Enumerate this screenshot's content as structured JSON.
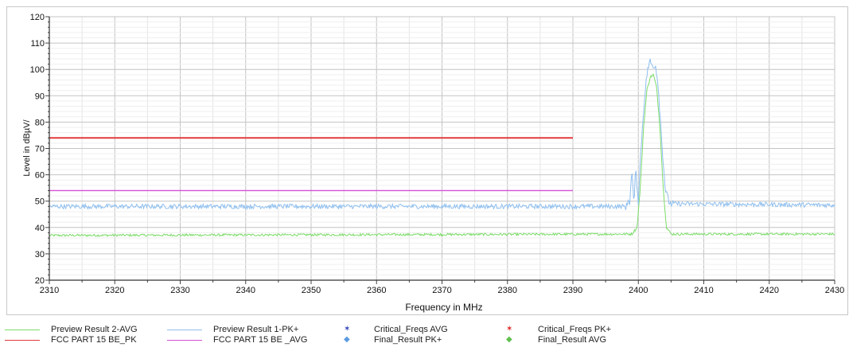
{
  "chart_data": {
    "type": "line",
    "xlabel": "Frequency in MHz",
    "ylabel": "Level in dBµV/",
    "xlim": [
      2310,
      2430
    ],
    "ylim": [
      20,
      120
    ],
    "x_ticks": [
      "2310",
      "2320",
      "2330",
      "2340",
      "2350",
      "2360",
      "2370",
      "2380",
      "2390",
      "2400",
      "2410",
      "2420",
      "2430"
    ],
    "y_ticks": [
      "20",
      "30",
      "40",
      "50",
      "60",
      "70",
      "80",
      "90",
      "100",
      "110",
      "120"
    ],
    "grid": true,
    "legend_position": "bottom",
    "series": [
      {
        "name": "Preview Result 2-AVG",
        "color": "#7ddc6a",
        "style": "line",
        "x": [
          2310,
          2399.0,
          2399.8,
          2400.3,
          2400.8,
          2401.3,
          2401.8,
          2402.3,
          2402.8,
          2403.3,
          2403.8,
          2404.3,
          2405.0,
          2430
        ],
        "y": [
          37,
          37.5,
          40,
          55,
          78,
          92,
          97,
          98,
          93,
          78,
          55,
          40,
          37.5,
          37.5
        ]
      },
      {
        "name": "Preview Result 1-PK+",
        "color": "#8fbfef",
        "style": "line",
        "x": [
          2310,
          2398.3,
          2398.5,
          2398.7,
          2399.0,
          2399.3,
          2399.6,
          2400.0,
          2400.4,
          2400.9,
          2401.4,
          2401.8,
          2402.2,
          2402.6,
          2403.0,
          2403.6,
          2404.1,
          2404.6,
          2405.0,
          2430
        ],
        "y": [
          48,
          48,
          52,
          49,
          62,
          49,
          62,
          50,
          70,
          88,
          100,
          103,
          101,
          102,
          95,
          72,
          55,
          50,
          49,
          48.5
        ]
      },
      {
        "name": "FCC PART 15 BE_PK",
        "color": "#e23b3b",
        "style": "limit",
        "x": [
          2310,
          2390
        ],
        "y": [
          74,
          74
        ]
      },
      {
        "name": "FCC PART 15 BE _AVG",
        "color": "#d64fd6",
        "style": "limit",
        "x": [
          2310,
          2390
        ],
        "y": [
          54,
          54
        ]
      },
      {
        "name": "Critical_Freqs AVG",
        "color": "#2f3fb8",
        "style": "marker",
        "x": [],
        "y": []
      },
      {
        "name": "Critical_Freqs PK+",
        "color": "#e02020",
        "style": "marker",
        "x": [],
        "y": []
      },
      {
        "name": "Final_Result PK+",
        "color": "#5b9be0",
        "style": "marker",
        "x": [],
        "y": []
      },
      {
        "name": "Final_Result AVG",
        "color": "#5fbf4f",
        "style": "marker",
        "x": [],
        "y": []
      }
    ]
  },
  "legend": [
    {
      "label": "Preview Result 2-AVG",
      "kind": "line",
      "color": "#7ddc6a"
    },
    {
      "label": "FCC PART 15 BE_PK",
      "kind": "line",
      "color": "#e23b3b"
    },
    {
      "label": "Preview Result 1-PK+",
      "kind": "line",
      "color": "#8fbfef"
    },
    {
      "label": "FCC PART 15 BE _AVG",
      "kind": "line",
      "color": "#d64fd6"
    },
    {
      "label": "Critical_Freqs AVG",
      "kind": "star",
      "color": "#2f3fb8"
    },
    {
      "label": "Final_Result PK+",
      "kind": "diamond",
      "color": "#5b9be0"
    },
    {
      "label": "Critical_Freqs PK+",
      "kind": "star",
      "color": "#e02020"
    },
    {
      "label": "Final_Result AVG",
      "kind": "diamond",
      "color": "#5fbf4f"
    }
  ]
}
